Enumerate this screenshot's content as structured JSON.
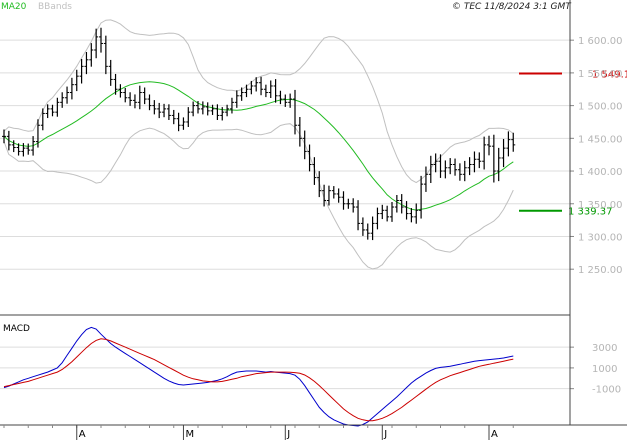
{
  "copyright": "© TEC 11/8/2024 3:1 GMT",
  "legend": {
    "ma": "MA20",
    "bbands": "BBands"
  },
  "macd_label": "MACD",
  "colors": {
    "price": "#000000",
    "ma20": "#22bb22",
    "bbands": "#c0c0c0",
    "macd": "#0000cc",
    "signal": "#cc0000",
    "grid": "#dddddd",
    "axis_text": "#b5b5b5",
    "resistance": "#cc0000",
    "support": "#009900"
  },
  "chart_data": [
    {
      "type": "ohlc",
      "title": "",
      "y_ticks": [
        1250,
        1300,
        1350,
        1400,
        1450,
        1500,
        1550,
        1600
      ],
      "y_tick_labels": [
        "1 250.00",
        "1 300.00",
        "1 350.00",
        "1 400.00",
        "1 450.00",
        "1 500.00",
        "1 550.00",
        "1 600.00"
      ],
      "ylim": [
        1180,
        1640
      ],
      "grid": true,
      "levels": [
        {
          "name": "resistance",
          "value": 1549.1,
          "label": "1 549.1"
        },
        {
          "name": "support",
          "value": 1339.37,
          "label": "1 339.37"
        }
      ],
      "x_ticks": [
        {
          "index": 15,
          "label": "A"
        },
        {
          "index": 37,
          "label": "M"
        },
        {
          "index": 58,
          "label": "J"
        },
        {
          "index": 78,
          "label": "J"
        },
        {
          "index": 100,
          "label": "A"
        }
      ],
      "bars_count": 106,
      "close": [
        1453,
        1440,
        1436,
        1430,
        1435,
        1432,
        1445,
        1470,
        1488,
        1495,
        1490,
        1505,
        1512,
        1520,
        1532,
        1545,
        1560,
        1570,
        1585,
        1605,
        1595,
        1560,
        1540,
        1525,
        1520,
        1512,
        1508,
        1505,
        1520,
        1510,
        1500,
        1495,
        1490,
        1495,
        1485,
        1480,
        1470,
        1475,
        1490,
        1500,
        1495,
        1498,
        1492,
        1495,
        1485,
        1490,
        1495,
        1505,
        1515,
        1520,
        1525,
        1530,
        1535,
        1525,
        1520,
        1530,
        1515,
        1510,
        1505,
        1510,
        1470,
        1450,
        1430,
        1410,
        1390,
        1370,
        1355,
        1370,
        1365,
        1360,
        1350,
        1350,
        1345,
        1320,
        1310,
        1305,
        1320,
        1335,
        1340,
        1330,
        1345,
        1355,
        1345,
        1335,
        1330,
        1340,
        1380,
        1395,
        1410,
        1415,
        1400,
        1405,
        1410,
        1402,
        1395,
        1405,
        1410,
        1418,
        1415,
        1440,
        1438,
        1400,
        1420,
        1435,
        1448,
        1440
      ],
      "range": [
        30,
        24,
        20,
        18,
        22,
        20,
        24,
        26,
        22,
        20,
        18,
        20,
        24,
        26,
        30,
        28,
        32,
        34,
        30,
        36,
        40,
        34,
        28,
        24,
        22,
        20,
        24,
        26,
        30,
        22,
        20,
        24,
        26,
        22,
        20,
        24,
        26,
        20,
        22,
        18,
        20,
        24,
        20,
        18,
        20,
        22,
        18,
        20,
        24,
        22,
        20,
        22,
        24,
        26,
        20,
        24,
        30,
        22,
        20,
        24,
        40,
        36,
        34,
        30,
        32,
        28,
        26,
        22,
        20,
        24,
        26,
        22,
        24,
        30,
        26,
        28,
        30,
        26,
        24,
        20,
        22,
        24,
        28,
        26,
        24,
        30,
        36,
        34,
        38,
        34,
        30,
        32,
        28,
        26,
        28,
        30,
        32,
        34,
        30,
        36,
        40,
        50,
        44,
        40,
        36,
        30
      ]
    },
    {
      "type": "line",
      "title": "MACD",
      "y_ticks": [
        3000,
        1000,
        -1000
      ],
      "y_tick_labels": [
        "3000",
        "1000",
        "-1000"
      ],
      "ylim": [
        -4500,
        6000
      ],
      "series": [
        {
          "role": "macd",
          "values": [
            -900,
            -750,
            -550,
            -350,
            -150,
            0,
            150,
            300,
            450,
            600,
            800,
            1000,
            1500,
            2200,
            2900,
            3600,
            4200,
            4700,
            4900,
            4750,
            4250,
            3800,
            3350,
            3000,
            2700,
            2400,
            2100,
            1800,
            1500,
            1200,
            900,
            600,
            300,
            0,
            -250,
            -450,
            -600,
            -650,
            -600,
            -550,
            -500,
            -450,
            -400,
            -300,
            -200,
            -50,
            150,
            400,
            600,
            650,
            700,
            700,
            700,
            650,
            600,
            650,
            600,
            550,
            500,
            450,
            300,
            -100,
            -700,
            -1400,
            -2100,
            -2800,
            -3300,
            -3700,
            -4000,
            -4200,
            -4400,
            -4500,
            -4550,
            -4600,
            -4450,
            -4200,
            -3800,
            -3400,
            -3000,
            -2600,
            -2200,
            -1800,
            -1350,
            -900,
            -450,
            -100,
            200,
            500,
            750,
            950,
            1050,
            1100,
            1150,
            1250,
            1350,
            1450,
            1550,
            1650,
            1700,
            1750,
            1800,
            1850,
            1900,
            1950,
            2050,
            2150
          ],
          "color": "#0000cc"
        },
        {
          "role": "signal",
          "values": [
            -800,
            -700,
            -600,
            -500,
            -400,
            -300,
            -150,
            0,
            150,
            300,
            450,
            600,
            850,
            1200,
            1600,
            2050,
            2500,
            2950,
            3350,
            3650,
            3800,
            3750,
            3600,
            3400,
            3200,
            3000,
            2800,
            2600,
            2400,
            2200,
            2000,
            1800,
            1550,
            1300,
            1050,
            800,
            550,
            300,
            100,
            -50,
            -150,
            -250,
            -300,
            -350,
            -350,
            -300,
            -200,
            -100,
            0,
            150,
            250,
            350,
            450,
            500,
            550,
            600,
            600,
            600,
            600,
            580,
            550,
            480,
            320,
            50,
            -300,
            -700,
            -1150,
            -1600,
            -2050,
            -2500,
            -2950,
            -3300,
            -3600,
            -3850,
            -4000,
            -4100,
            -4100,
            -4000,
            -3850,
            -3650,
            -3400,
            -3100,
            -2800,
            -2450,
            -2100,
            -1750,
            -1400,
            -1050,
            -700,
            -400,
            -150,
            50,
            250,
            400,
            550,
            700,
            850,
            1000,
            1150,
            1250,
            1350,
            1450,
            1550,
            1650,
            1750,
            1850
          ],
          "color": "#cc0000"
        }
      ]
    }
  ]
}
